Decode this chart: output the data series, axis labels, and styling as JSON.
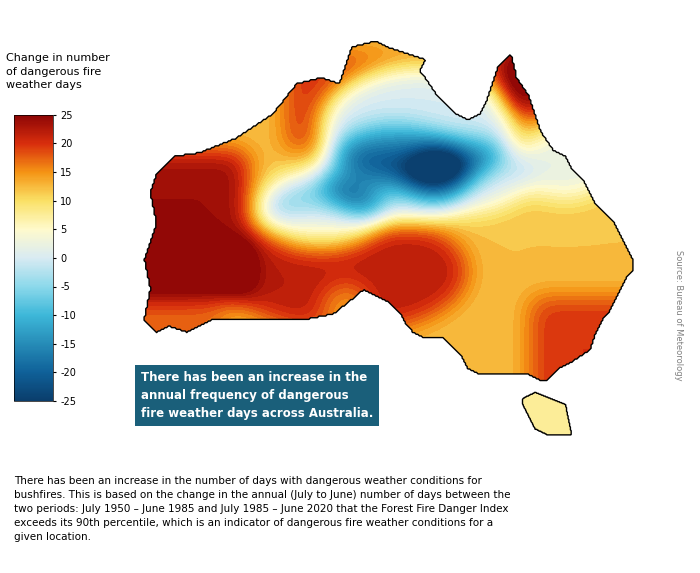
{
  "title_text": "Change in number\nof dangerous fire\nweather days",
  "colorbar_ticks": [
    25,
    20,
    15,
    10,
    5,
    0,
    -5,
    -10,
    -15,
    -20,
    -25
  ],
  "colorbar_colors": [
    "#5a0000",
    "#8b0000",
    "#cc2200",
    "#e84800",
    "#f57d00",
    "#f5b800",
    "#f5e87a",
    "#ffffff",
    "#c8ebf0",
    "#7ecce0",
    "#3a9bbf",
    "#1a6a99",
    "#0a3d6b"
  ],
  "vmin": -25,
  "vmax": 25,
  "annotation_text": "There has been an increase in the\nannual frequency of dangerous\nfire weather days across Australia.",
  "annotation_bg": "#1a5f7a",
  "annotation_text_color": "#ffffff",
  "source_text": "Source: Bureau of Meteorology",
  "body_text": "There has been an increase in the number of days with dangerous weather conditions for\nbushfires. This is based on the change in the annual (July to June) number of days between the\ntwo periods: July 1950 – June 1985 and July 1985 – June 2020 that the Forest Fire Danger Index\nexceeds its 90th percentile, which is an indicator of dangerous fire weather conditions for a\ngiven location.",
  "background_color": "#ffffff"
}
